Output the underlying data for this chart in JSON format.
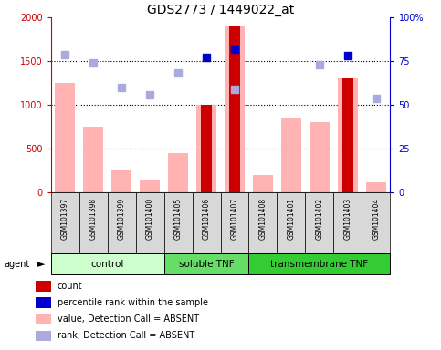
{
  "title": "GDS2773 / 1449022_at",
  "samples": [
    "GSM101397",
    "GSM101398",
    "GSM101399",
    "GSM101400",
    "GSM101405",
    "GSM101406",
    "GSM101407",
    "GSM101408",
    "GSM101401",
    "GSM101402",
    "GSM101403",
    "GSM101404"
  ],
  "groups": [
    {
      "name": "control",
      "start": 0,
      "end": 4
    },
    {
      "name": "soluble TNF",
      "start": 4,
      "end": 7
    },
    {
      "name": "transmembrane TNF",
      "start": 7,
      "end": 12
    }
  ],
  "value_bars": [
    1250,
    750,
    250,
    150,
    450,
    1000,
    1900,
    200,
    850,
    800,
    1300,
    120
  ],
  "value_bar_color": "#ffb3b3",
  "count_bars": [
    null,
    null,
    null,
    null,
    null,
    1000,
    1900,
    null,
    null,
    null,
    1300,
    null
  ],
  "count_bar_color": "#cc0000",
  "rank_dots": [
    1580,
    1480,
    1200,
    1120,
    1370,
    null,
    1180,
    null,
    null,
    1460,
    null,
    1080
  ],
  "rank_dot_color": "#aaaadd",
  "percentile_dots": [
    null,
    null,
    null,
    null,
    null,
    1540,
    1640,
    null,
    null,
    null,
    1560,
    null
  ],
  "percentile_dot_color": "#0000cc",
  "ylim_left": [
    0,
    2000
  ],
  "ylim_right": [
    0,
    100
  ],
  "yticks_left": [
    0,
    500,
    1000,
    1500,
    2000
  ],
  "yticks_right": [
    0,
    25,
    50,
    75,
    100
  ],
  "ytick_labels_left": [
    "0",
    "500",
    "1000",
    "1500",
    "2000"
  ],
  "ytick_labels_right": [
    "0",
    "25",
    "50",
    "75",
    "100%"
  ],
  "left_axis_color": "#cc0000",
  "right_axis_color": "#0000cc",
  "legend_items": [
    {
      "color": "#cc0000",
      "label": "count"
    },
    {
      "color": "#0000cc",
      "label": "percentile rank within the sample"
    },
    {
      "color": "#ffb3b3",
      "label": "value, Detection Call = ABSENT"
    },
    {
      "color": "#aaaadd",
      "label": "rank, Detection Call = ABSENT"
    }
  ],
  "group_colors": [
    "#ccffcc",
    "#66dd66",
    "#33cc33"
  ],
  "bg_color": "#d8d8d8",
  "plot_bg": "#ffffff"
}
